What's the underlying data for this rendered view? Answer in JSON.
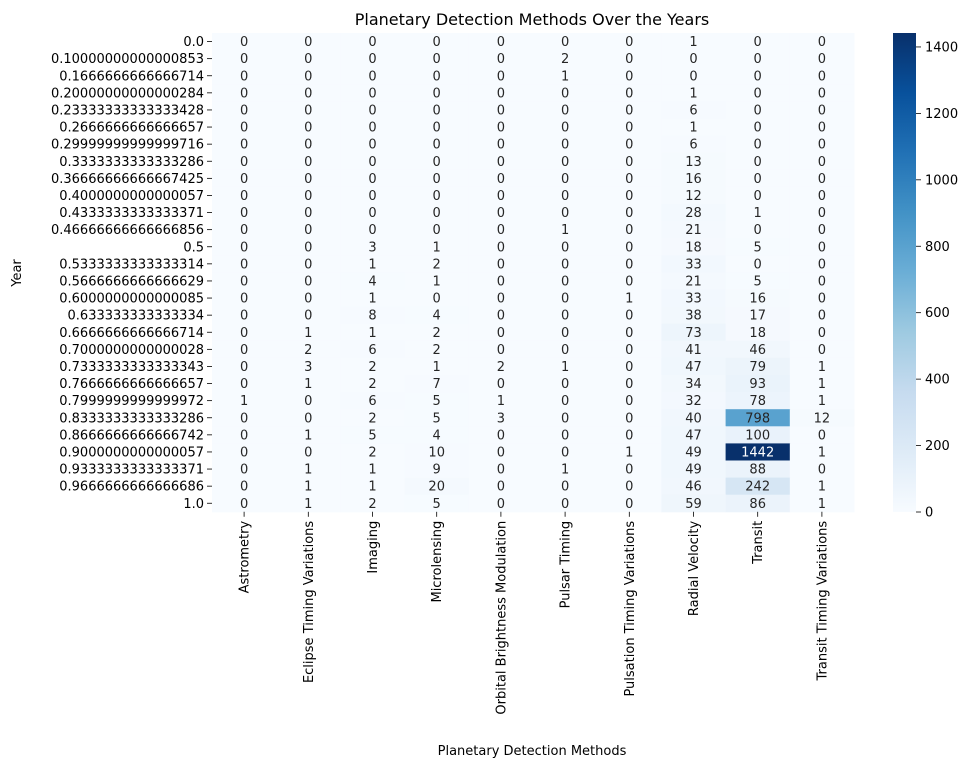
{
  "chart_data": {
    "type": "heatmap",
    "title": "Planetary Detection Methods Over the Years",
    "xlabel": "Planetary Detection Methods",
    "ylabel": "Year",
    "columns": [
      "Astrometry",
      "Eclipse Timing Variations",
      "Imaging",
      "Microlensing",
      "Orbital Brightness Modulation",
      "Pulsar Timing",
      "Pulsation Timing Variations",
      "Radial Velocity",
      "Transit",
      "Transit Timing Variations"
    ],
    "rows": [
      "0.0",
      "0.10000000000000853",
      "0.1666666666666714",
      "0.20000000000000284",
      "0.23333333333333428",
      "0.2666666666666657",
      "0.29999999999999716",
      "0.3333333333333286",
      "0.36666666666667425",
      "0.4000000000000057",
      "0.4333333333333371",
      "0.46666666666666856",
      "0.5",
      "0.5333333333333314",
      "0.5666666666666629",
      "0.6000000000000085",
      "0.633333333333334",
      "0.6666666666666714",
      "0.7000000000000028",
      "0.7333333333333343",
      "0.7666666666666657",
      "0.7999999999999972",
      "0.8333333333333286",
      "0.8666666666666742",
      "0.9000000000000057",
      "0.9333333333333371",
      "0.9666666666666686",
      "1.0"
    ],
    "values": [
      [
        0,
        0,
        0,
        0,
        0,
        0,
        0,
        1,
        0,
        0
      ],
      [
        0,
        0,
        0,
        0,
        0,
        2,
        0,
        0,
        0,
        0
      ],
      [
        0,
        0,
        0,
        0,
        0,
        1,
        0,
        0,
        0,
        0
      ],
      [
        0,
        0,
        0,
        0,
        0,
        0,
        0,
        1,
        0,
        0
      ],
      [
        0,
        0,
        0,
        0,
        0,
        0,
        0,
        6,
        0,
        0
      ],
      [
        0,
        0,
        0,
        0,
        0,
        0,
        0,
        1,
        0,
        0
      ],
      [
        0,
        0,
        0,
        0,
        0,
        0,
        0,
        6,
        0,
        0
      ],
      [
        0,
        0,
        0,
        0,
        0,
        0,
        0,
        13,
        0,
        0
      ],
      [
        0,
        0,
        0,
        0,
        0,
        0,
        0,
        16,
        0,
        0
      ],
      [
        0,
        0,
        0,
        0,
        0,
        0,
        0,
        12,
        0,
        0
      ],
      [
        0,
        0,
        0,
        0,
        0,
        0,
        0,
        28,
        1,
        0
      ],
      [
        0,
        0,
        0,
        0,
        0,
        1,
        0,
        21,
        0,
        0
      ],
      [
        0,
        0,
        3,
        1,
        0,
        0,
        0,
        18,
        5,
        0
      ],
      [
        0,
        0,
        1,
        2,
        0,
        0,
        0,
        33,
        0,
        0
      ],
      [
        0,
        0,
        4,
        1,
        0,
        0,
        0,
        21,
        5,
        0
      ],
      [
        0,
        0,
        1,
        0,
        0,
        0,
        1,
        33,
        16,
        0
      ],
      [
        0,
        0,
        8,
        4,
        0,
        0,
        0,
        38,
        17,
        0
      ],
      [
        0,
        1,
        1,
        2,
        0,
        0,
        0,
        73,
        18,
        0
      ],
      [
        0,
        2,
        6,
        2,
        0,
        0,
        0,
        41,
        46,
        0
      ],
      [
        0,
        3,
        2,
        1,
        2,
        1,
        0,
        47,
        79,
        1
      ],
      [
        0,
        1,
        2,
        7,
        0,
        0,
        0,
        34,
        93,
        1
      ],
      [
        1,
        0,
        6,
        5,
        1,
        0,
        0,
        32,
        78,
        1
      ],
      [
        0,
        0,
        2,
        5,
        3,
        0,
        0,
        40,
        798,
        12
      ],
      [
        0,
        1,
        5,
        4,
        0,
        0,
        0,
        47,
        100,
        0
      ],
      [
        0,
        0,
        2,
        10,
        0,
        0,
        1,
        49,
        1442,
        1
      ],
      [
        0,
        1,
        1,
        9,
        0,
        1,
        0,
        49,
        88,
        0
      ],
      [
        0,
        1,
        1,
        20,
        0,
        0,
        0,
        46,
        242,
        1
      ],
      [
        0,
        1,
        2,
        5,
        0,
        0,
        0,
        59,
        86,
        1
      ]
    ],
    "colorbar": {
      "min": 0,
      "max": 1442,
      "ticks": [
        0,
        200,
        400,
        600,
        800,
        1000,
        1200,
        1400
      ]
    },
    "colormap": "Blues",
    "colors": {
      "low": "#f7fbff",
      "high": "#08306b"
    }
  }
}
